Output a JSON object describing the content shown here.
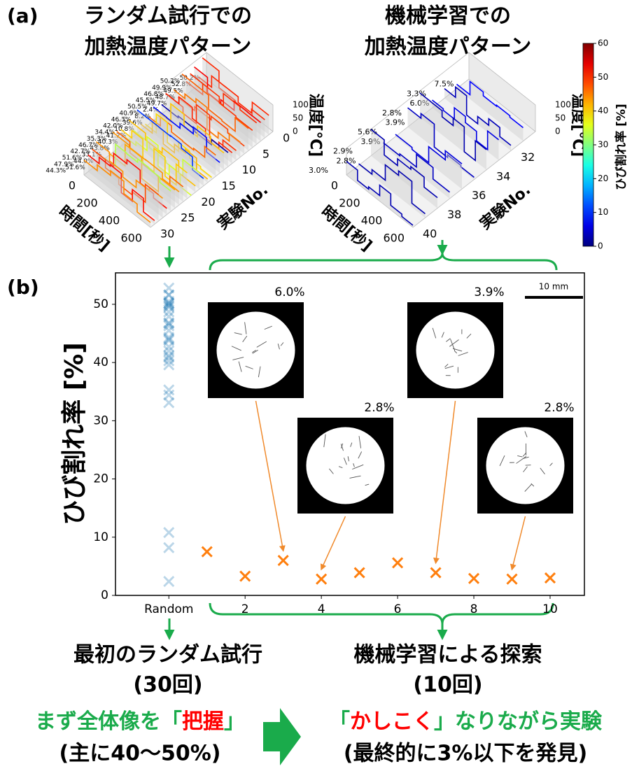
{
  "panel_a": {
    "label": "(a)",
    "random_plot": {
      "title": [
        "ランダム試行での",
        "加熱温度パターン"
      ],
      "temperature_label": "温度[℃]",
      "temperature_ticks": [
        0,
        50,
        100
      ],
      "time_label": "時間[秒]",
      "time_ticks": [
        0,
        200,
        400,
        600
      ],
      "experiment_label": "実験No.",
      "experiment_lim": [
        0,
        30
      ],
      "experiment_ticks": [
        0,
        5,
        10,
        15,
        20,
        25,
        30
      ],
      "crack_rates": [
        50.2,
        50.2,
        52.8,
        49.9,
        49.5,
        46.8,
        48.7,
        45.5,
        49.7,
        50.5,
        2.4,
        40.9,
        8.2,
        46.3,
        39.6,
        42.0,
        10.8,
        34.4,
        41.2,
        35.3,
        40.3,
        46.7,
        43.8,
        42.7,
        33.1,
        51.6,
        44.0,
        47.9,
        51.6,
        44.3
      ],
      "crack_rate_labels": [
        "50.2%",
        "50.2%",
        "52.8%",
        "49.9%",
        "49.5%",
        "46.8%",
        "48.7%",
        "45.5%",
        "49.7%",
        "50.5%",
        "2.4%",
        "40.9%",
        "8.2%",
        "46.3%",
        "39.6%",
        "42.0%",
        "10.8%",
        "34.4%",
        "41.2%",
        "35.3%",
        "40.3%",
        "46.7%",
        "43.8%",
        "42.7%",
        "33.1%",
        "51.6%",
        "44.0%",
        "47.9%",
        "51.6%",
        "44.3%"
      ]
    },
    "ml_plot": {
      "title": [
        "機械学習での",
        "加熱温度パターン"
      ],
      "temperature_label": "温度[℃]",
      "temperature_ticks": [
        0,
        50,
        100
      ],
      "time_label": "時間[秒]",
      "time_ticks": [
        0,
        200,
        400,
        600
      ],
      "experiment_label": "実験No.",
      "experiment_lim": [
        30,
        40
      ],
      "experiment_ticks": [
        32,
        34,
        36,
        38,
        40
      ],
      "crack_rates": [
        7.5,
        3.3,
        6.0,
        2.8,
        3.9,
        5.6,
        3.9,
        2.9,
        2.8,
        3.0
      ],
      "crack_rate_labels": [
        "7.5%",
        "3.3%",
        "6.0%",
        "2.8%",
        "3.9%",
        "5.6%",
        "3.9%",
        "2.9%",
        "2.8%",
        "3.0%"
      ]
    },
    "colorbar": {
      "label": "ひび割れ率 [%]",
      "lim": [
        0,
        60
      ],
      "ticks": [
        0,
        10,
        20,
        30,
        40,
        50,
        60
      ],
      "colormap": "jet"
    }
  },
  "chart_data": {
    "type": "scatter",
    "label": "(b)",
    "y_label": "ひび割れ率 [%]",
    "xlim": [
      -1.4,
      10.9
    ],
    "xticks": [
      {
        "value": 0,
        "label": "Random"
      },
      2,
      4,
      6,
      8,
      10
    ],
    "ylim": [
      0,
      55.4
    ],
    "yticks": [
      0,
      10,
      20,
      30,
      40,
      50
    ],
    "marker": "x",
    "series": [
      {
        "color": "#1f77b4",
        "opacity": 0.3,
        "x": [
          0,
          0,
          0,
          0,
          0,
          0,
          0,
          0,
          0,
          0,
          0,
          0,
          0,
          0,
          0,
          0,
          0,
          0,
          0,
          0,
          0,
          0,
          0,
          0,
          0,
          0,
          0,
          0,
          0,
          0
        ],
        "values": [
          50.2,
          50.2,
          52.8,
          49.9,
          49.5,
          46.8,
          48.7,
          45.5,
          49.7,
          50.5,
          2.4,
          40.9,
          8.2,
          46.3,
          39.6,
          42.0,
          10.8,
          34.4,
          41.2,
          35.3,
          40.3,
          46.7,
          43.8,
          42.7,
          33.1,
          51.6,
          44.0,
          47.9,
          51.6,
          44.3
        ]
      },
      {
        "color": "#ff7f0e",
        "opacity": 1,
        "x": [
          1,
          2,
          3,
          4,
          5,
          6,
          7,
          8,
          9,
          10
        ],
        "values": [
          7.5,
          3.3,
          6.0,
          2.8,
          3.9,
          5.6,
          3.9,
          2.9,
          2.8,
          3.0
        ]
      }
    ],
    "scale_bar": "10 mm",
    "insets": [
      {
        "label": "6.0%",
        "x": 3
      },
      {
        "label": "3.9%",
        "x": 7
      },
      {
        "label": "2.8%",
        "x": 4
      },
      {
        "label": "2.8%",
        "x": 9
      }
    ]
  },
  "summary": {
    "colors": {
      "accent": "#1aab4b",
      "emphasis": "#ff0000"
    },
    "random": {
      "title": "最初のランダム試行",
      "count": "(30回)",
      "message": {
        "before": "まず全体像を「",
        "emphasis": "把握",
        "after": "」"
      },
      "note": "(主に40〜50%)"
    },
    "ml": {
      "title": "機械学習による探索",
      "count": "(10回)",
      "message": {
        "before": "「",
        "emphasis": "かしこく",
        "after": "」なりながら実験"
      },
      "note": "(最終的に3%以下を発見)"
    }
  }
}
